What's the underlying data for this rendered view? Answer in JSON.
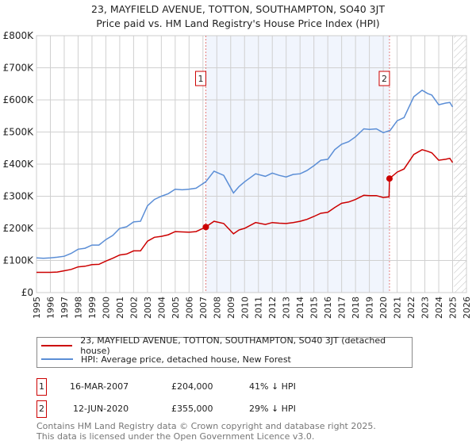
{
  "chart_data": {
    "type": "line",
    "title": "23, MAYFIELD AVENUE, TOTTON, SOUTHAMPTON, SO40 3JT",
    "subtitle": "Price paid vs. HM Land Registry's House Price Index (HPI)",
    "xlim": [
      1995,
      2026
    ],
    "ylim": [
      0,
      800000
    ],
    "x_ticks": [
      "1995",
      "1996",
      "1997",
      "1998",
      "1999",
      "2000",
      "2001",
      "2002",
      "2003",
      "2004",
      "2005",
      "2006",
      "2007",
      "2008",
      "2009",
      "2010",
      "2011",
      "2012",
      "2013",
      "2014",
      "2015",
      "2016",
      "2017",
      "2018",
      "2019",
      "2020",
      "2021",
      "2022",
      "2023",
      "2024",
      "2025",
      "2026"
    ],
    "y_ticks": [
      {
        "v": 0,
        "label": "£0"
      },
      {
        "v": 100000,
        "label": "£100K"
      },
      {
        "v": 200000,
        "label": "£200K"
      },
      {
        "v": 300000,
        "label": "£300K"
      },
      {
        "v": 400000,
        "label": "£400K"
      },
      {
        "v": 500000,
        "label": "£500K"
      },
      {
        "v": 600000,
        "label": "£600K"
      },
      {
        "v": 700000,
        "label": "£700K"
      },
      {
        "v": 800000,
        "label": "£800K"
      }
    ],
    "grid": true,
    "series": [
      {
        "name": "HPI: Average price, detached house, New Forest",
        "color": "#5b8ed6",
        "x": [
          1995,
          1995.5,
          1996,
          1996.5,
          1997,
          1997.5,
          1998,
          1998.5,
          1999,
          1999.5,
          2000,
          2000.5,
          2001,
          2001.5,
          2002,
          2002.5,
          2003,
          2003.5,
          2004,
          2004.5,
          2005,
          2005.5,
          2006,
          2006.5,
          2007.2,
          2007.8,
          2008.5,
          2009.2,
          2009.6,
          2010,
          2010.8,
          2011.5,
          2012,
          2012.5,
          2013,
          2013.5,
          2014,
          2014.5,
          2015,
          2015.5,
          2016,
          2016.5,
          2017,
          2017.5,
          2018,
          2018.6,
          2019,
          2019.5,
          2020,
          2020.5,
          2021,
          2021.5,
          2022.2,
          2022.8,
          2023.2,
          2023.5,
          2024,
          2024.5,
          2024.8,
          2025
        ],
        "y": [
          108000,
          107000,
          108000,
          110000,
          113000,
          122000,
          135000,
          138000,
          148000,
          148000,
          165000,
          178000,
          200000,
          205000,
          220000,
          222000,
          270000,
          290000,
          300000,
          308000,
          322000,
          320000,
          322000,
          325000,
          345000,
          378000,
          365000,
          310000,
          330000,
          345000,
          370000,
          362000,
          372000,
          365000,
          360000,
          368000,
          370000,
          380000,
          395000,
          412000,
          415000,
          445000,
          462000,
          470000,
          485000,
          510000,
          508000,
          510000,
          498000,
          505000,
          535000,
          545000,
          610000,
          630000,
          620000,
          615000,
          585000,
          590000,
          592000,
          578000
        ]
      },
      {
        "name": "23, MAYFIELD AVENUE, TOTTON, SOUTHAMPTON, SO40 3JT (detached house)",
        "color": "#cc0000",
        "x": [
          1995,
          1995.5,
          1996,
          1996.5,
          1997,
          1997.5,
          1998,
          1998.5,
          1999,
          1999.5,
          2000,
          2000.5,
          2001,
          2001.5,
          2002,
          2002.5,
          2003,
          2003.5,
          2004,
          2004.5,
          2005,
          2005.5,
          2006,
          2006.5,
          2007.2,
          2007.8,
          2008.5,
          2009.2,
          2009.6,
          2010,
          2010.8,
          2011.5,
          2012,
          2012.5,
          2013,
          2013.5,
          2014,
          2014.5,
          2015,
          2015.5,
          2016,
          2016.5,
          2017,
          2017.5,
          2018,
          2018.6,
          2019,
          2019.5,
          2020,
          2020.42,
          2020.45,
          2021,
          2021.5,
          2022.2,
          2022.8,
          2023.2,
          2023.5,
          2024,
          2024.5,
          2024.8,
          2025
        ],
        "y": [
          63000,
          63000,
          63000,
          64000,
          68000,
          72000,
          80000,
          82000,
          87000,
          88000,
          98000,
          107000,
          117000,
          120000,
          130000,
          130000,
          160000,
          172000,
          175000,
          180000,
          190000,
          189000,
          188000,
          190000,
          204000,
          222000,
          215000,
          183000,
          195000,
          200000,
          218000,
          212000,
          218000,
          216000,
          215000,
          218000,
          222000,
          228000,
          237000,
          247000,
          250000,
          265000,
          278000,
          282000,
          290000,
          303000,
          302000,
          302000,
          296000,
          298000,
          355000,
          375000,
          385000,
          430000,
          445000,
          440000,
          435000,
          412000,
          415000,
          418000,
          405000
        ]
      }
    ],
    "sales": [
      {
        "n": "1",
        "x": 2007.21,
        "y": 204000
      },
      {
        "n": "2",
        "x": 2020.45,
        "y": 355000
      }
    ],
    "legend_placement": "bottom"
  },
  "legend": {
    "red": "23, MAYFIELD AVENUE, TOTTON, SOUTHAMPTON, SO40 3JT (detached house)",
    "blue": "HPI: Average price, detached house, New Forest"
  },
  "transactions": [
    {
      "n": "1",
      "date": "16-MAR-2007",
      "price": "£204,000",
      "hpi": "41% ↓ HPI"
    },
    {
      "n": "2",
      "date": "12-JUN-2020",
      "price": "£355,000",
      "hpi": "29% ↓ HPI"
    }
  ],
  "footer": [
    "Contains HM Land Registry data © Crown copyright and database right 2025.",
    "This data is licensed under the Open Government Licence v3.0."
  ]
}
